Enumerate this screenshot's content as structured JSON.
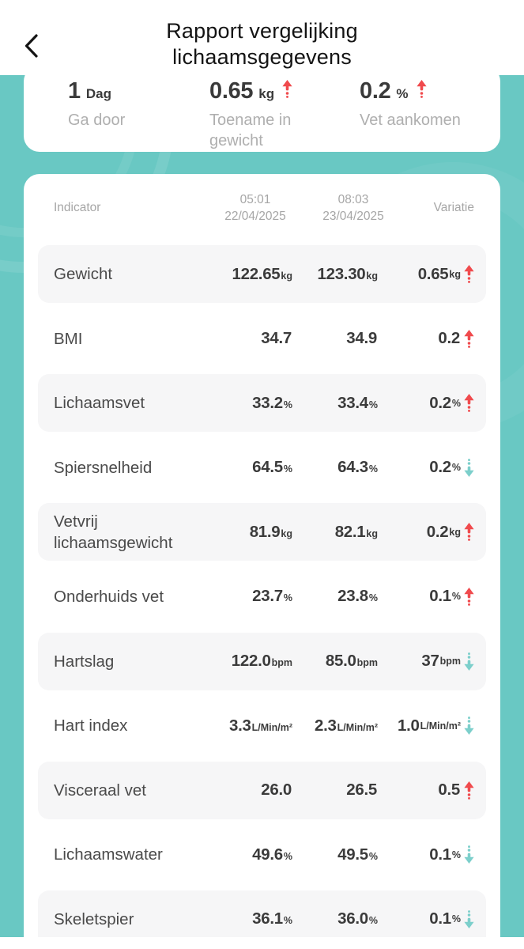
{
  "header": {
    "title_line1": "Rapport vergelijking",
    "title_line2": "lichaamsgegevens",
    "back_icon": "chevron-left"
  },
  "summary": {
    "stats": [
      {
        "value": "1",
        "unit": "Dag",
        "label": "Ga door",
        "direction": null
      },
      {
        "value": "0.65",
        "unit": "kg",
        "label": "Toename in gewicht",
        "direction": "up"
      },
      {
        "value": "0.2",
        "unit": "%",
        "label": "Vet aankomen",
        "direction": "up"
      }
    ]
  },
  "table": {
    "columns": {
      "indicator": "Indicator",
      "col1_time": "05:01",
      "col1_date": "22/04/2025",
      "col2_time": "08:03",
      "col2_date": "23/04/2025",
      "variation": "Variatie"
    },
    "rows": [
      {
        "label": "Gewicht",
        "v1": "122.65",
        "u1": "kg",
        "v2": "123.30",
        "u2": "kg",
        "dv": "0.65",
        "du": "kg",
        "direction": "up",
        "shaded": true
      },
      {
        "label": "BMI",
        "v1": "34.7",
        "u1": "",
        "v2": "34.9",
        "u2": "",
        "dv": "0.2",
        "du": "",
        "direction": "up",
        "shaded": false
      },
      {
        "label": "Lichaamsvet",
        "v1": "33.2",
        "u1": "%",
        "v2": "33.4",
        "u2": "%",
        "dv": "0.2",
        "du": "%",
        "direction": "up",
        "shaded": true
      },
      {
        "label": "Spiersnelheid",
        "v1": "64.5",
        "u1": "%",
        "v2": "64.3",
        "u2": "%",
        "dv": "0.2",
        "du": "%",
        "direction": "down",
        "shaded": false
      },
      {
        "label": "Vetvrij lichaamsgewicht",
        "v1": "81.9",
        "u1": "kg",
        "v2": "82.1",
        "u2": "kg",
        "dv": "0.2",
        "du": "kg",
        "direction": "up",
        "shaded": true
      },
      {
        "label": "Onderhuids vet",
        "v1": "23.7",
        "u1": "%",
        "v2": "23.8",
        "u2": "%",
        "dv": "0.1",
        "du": "%",
        "direction": "up",
        "shaded": false
      },
      {
        "label": "Hartslag",
        "v1": "122.0",
        "u1": "bpm",
        "v2": "85.0",
        "u2": "bpm",
        "dv": "37",
        "du": "bpm",
        "direction": "down",
        "shaded": true
      },
      {
        "label": "Hart index",
        "v1": "3.3",
        "u1": "L/Min/m²",
        "v2": "2.3",
        "u2": "L/Min/m²",
        "dv": "1.0",
        "du": "L/Min/m²",
        "direction": "down",
        "shaded": false
      },
      {
        "label": "Visceraal vet",
        "v1": "26.0",
        "u1": "",
        "v2": "26.5",
        "u2": "",
        "dv": "0.5",
        "du": "",
        "direction": "up",
        "shaded": true
      },
      {
        "label": "Lichaamswater",
        "v1": "49.6",
        "u1": "%",
        "v2": "49.5",
        "u2": "%",
        "dv": "0.1",
        "du": "%",
        "direction": "down",
        "shaded": false
      },
      {
        "label": "Skeletspier",
        "v1": "36.1",
        "u1": "%",
        "v2": "36.0",
        "u2": "%",
        "dv": "0.1",
        "du": "%",
        "direction": "down",
        "shaded": true
      }
    ]
  },
  "colors": {
    "teal_background": "#69C8C3",
    "increase": "#F04A4D",
    "decrease": "#7CCFCB",
    "row_shade": "#F6F6F7",
    "text_dark": "#3B3B3B",
    "text_muted": "#A6A6A6"
  }
}
